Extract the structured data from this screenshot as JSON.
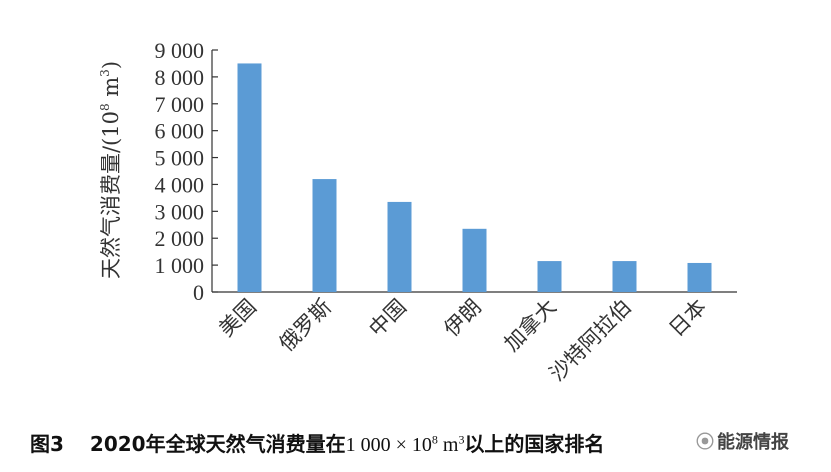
{
  "chart_data": {
    "type": "bar",
    "categories": [
      "美国",
      "俄罗斯",
      "中国",
      "伊朗",
      "加拿大",
      "沙特阿拉伯",
      "日本"
    ],
    "values": [
      8500,
      4200,
      3350,
      2350,
      1150,
      1150,
      1080
    ],
    "ylabel": "天然气消费量/(10^8 m^3)",
    "ylabel_base": "天然气消费量/(10",
    "ylabel_exp1": "8",
    "ylabel_mid": " m",
    "ylabel_exp2": "3",
    "ylabel_close": ")",
    "yticks": [
      "0",
      "1 000",
      "2 000",
      "3 000",
      "4 000",
      "5 000",
      "6 000",
      "7 000",
      "8 000",
      "9 000"
    ],
    "ylim": [
      0,
      9000
    ],
    "grid": false,
    "bar_color": "#5b9bd5"
  },
  "caption": {
    "figure_label": "图3",
    "text_before": "2020年全球天然气消费量在",
    "amount": "1 000 × 10",
    "amount_exp1": "8",
    "amount_mid": " m",
    "amount_exp2": "3",
    "text_after": "以上的国家排名"
  },
  "watermark": {
    "icon": "wechat-icon",
    "text": "能源情报"
  }
}
